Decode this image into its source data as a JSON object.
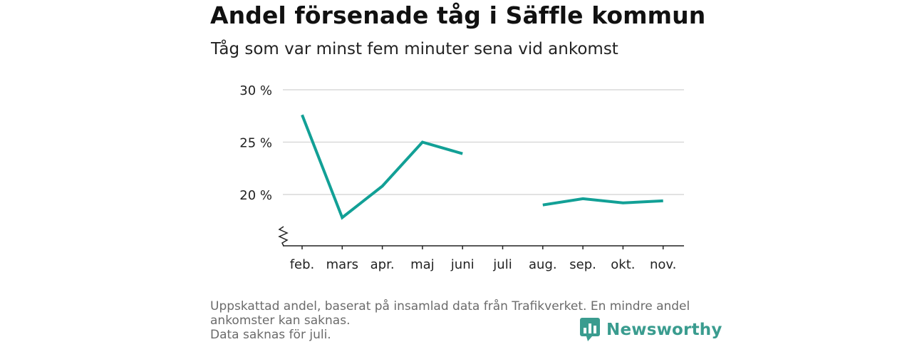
{
  "header": {
    "title": "Andel försenade tåg i Säffle kommun",
    "subtitle": "Tåg som var minst fem minuter sena vid ankomst"
  },
  "chart_data": {
    "type": "line",
    "categories": [
      "feb.",
      "mars",
      "apr.",
      "maj",
      "juni",
      "juli",
      "aug.",
      "sep.",
      "okt.",
      "nov."
    ],
    "series": [
      {
        "values": [
          27.6,
          17.8,
          20.8,
          25.0,
          23.9,
          null,
          19.0,
          19.6,
          19.2,
          19.4
        ]
      }
    ],
    "y_ticks": [
      20,
      25,
      30
    ],
    "y_tick_labels": [
      "20 %",
      "25 %",
      "30 %"
    ],
    "ylim": [
      15,
      30
    ],
    "y_axis_break": true,
    "grid": "horizontal",
    "legend": "none",
    "line_color": "#12a096"
  },
  "footnote": {
    "lines": [
      "Uppskattad andel, baserat på insamlad data från Trafikverket. En mindre andel",
      "ankomster kan saknas.",
      "Data saknas för juli."
    ]
  },
  "brand": {
    "name": "Newsworthy",
    "icon": "bar-chart-logo-icon",
    "color": "#3a9c8f"
  }
}
